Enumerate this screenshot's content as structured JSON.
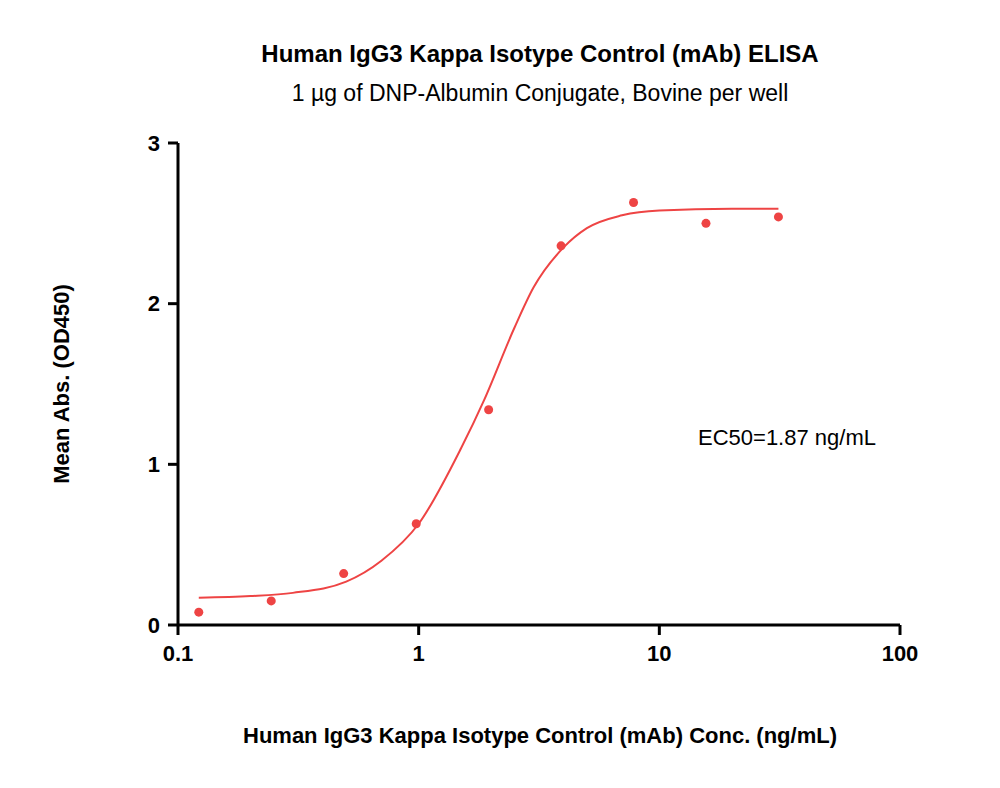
{
  "chart_data": {
    "type": "scatter",
    "title": "Human IgG3 Kappa Isotype Control (mAb) ELISA",
    "subtitle": "1 µg of DNP-Albumin Conjugate, Bovine per well",
    "x_label": "Human IgG3 Kappa Isotype Control (mAb) Conc. (ng/mL)",
    "y_label": "Mean Abs. (OD450)",
    "annotation": "EC50=1.87 ng/mL",
    "log": "x",
    "grid": false,
    "xlim": [
      0.1,
      100
    ],
    "xticks": [
      0.1,
      1,
      10,
      100
    ],
    "ylim": [
      0,
      3
    ],
    "yticks": [
      0,
      1,
      2,
      3
    ],
    "series": [
      {
        "type": "scatter",
        "marker": "circle",
        "color": "#ee4444",
        "x": [
          0.122,
          0.244,
          0.488,
          0.977,
          1.953,
          3.906,
          7.813,
          15.625,
          31.25
        ],
        "values": [
          0.08,
          0.15,
          0.32,
          0.63,
          1.34,
          2.36,
          2.63,
          2.5,
          2.54
        ]
      },
      {
        "type": "line",
        "line_style": "solid",
        "color": "#ee4444",
        "x": [
          0.122,
          0.2,
          0.3,
          0.5,
          0.7,
          1,
          1.5,
          1.87,
          2.5,
          3,
          4,
          5,
          7,
          10,
          20,
          31.25
        ],
        "values": [
          0.17,
          0.18,
          0.2,
          0.27,
          0.4,
          0.63,
          1.1,
          1.4,
          1.85,
          2.1,
          2.35,
          2.47,
          2.55,
          2.58,
          2.59,
          2.59
        ]
      }
    ]
  }
}
